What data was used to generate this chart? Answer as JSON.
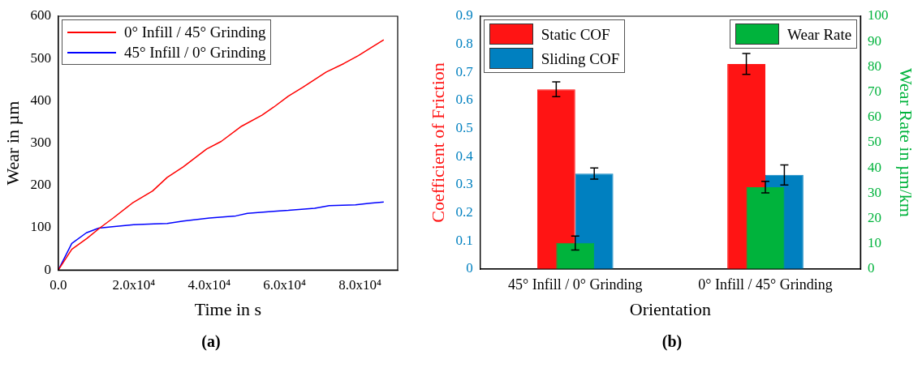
{
  "chart_data": [
    {
      "type": "line",
      "xlabel": "Time in s",
      "ylabel": "Wear in µm",
      "legend": "top left",
      "marker": "none",
      "line_style": "solid",
      "xlim": [
        0,
        90000
      ],
      "xticks": [
        {
          "value": 0,
          "label": "0.0"
        },
        {
          "value": 20000,
          "label": "2.0x10⁴"
        },
        {
          "value": 40000,
          "label": "4.0x10⁴"
        },
        {
          "value": 60000,
          "label": "6.0x10⁴"
        },
        {
          "value": 80000,
          "label": "8.0x10⁴"
        }
      ],
      "ylim": [
        0,
        600
      ],
      "yticks": [
        0,
        100,
        200,
        300,
        400,
        500,
        600
      ],
      "series": [
        {
          "name": "0° Infill / 45° Grinding",
          "color": "#ff0000",
          "x": [
            0,
            3560,
            7590,
            11070,
            14550,
            19580,
            25000,
            28870,
            33130,
            39320,
            43190,
            48600,
            54000,
            57100,
            61000,
            64860,
            71050,
            75700,
            79570,
            82660,
            86300
          ],
          "values": [
            0,
            49,
            75,
            100,
            123,
            158,
            187,
            219,
            244,
            286,
            304,
            340,
            366,
            385,
            411,
            432,
            468,
            488,
            507,
            524,
            544
          ]
        },
        {
          "name": "45° Infill / 0° Grinding",
          "color": "#0000ff",
          "x": [
            0,
            3560,
            7430,
            10680,
            13780,
            19970,
            25390,
            28870,
            33130,
            40100,
            47060,
            50160,
            57120,
            60990,
            67960,
            71830,
            78800,
            82660,
            86300
          ],
          "values": [
            0,
            63,
            88,
            99,
            102,
            107,
            109,
            110,
            116,
            123,
            128,
            134,
            139,
            141,
            146,
            152,
            154,
            158,
            161
          ]
        }
      ],
      "annotations": [
        "(a)"
      ]
    },
    {
      "type": "bar",
      "xlabel": "Orientation",
      "ylabel": "Coefficient of Friction",
      "y2label": "Wear Rate in µm/km",
      "legend": "top left",
      "categories": [
        "45° Infill / 0° Grinding",
        "0° Infill / 45° Grinding"
      ],
      "ylim": [
        0,
        0.9
      ],
      "yticks": [
        0,
        0.1,
        0.2,
        0.3,
        0.4,
        0.5,
        0.6,
        0.7,
        0.8,
        0.9
      ],
      "y2lim": [
        0,
        100
      ],
      "y2ticks": [
        0,
        10,
        20,
        30,
        40,
        50,
        60,
        70,
        80,
        90,
        100
      ],
      "series": [
        {
          "name": "Static COF",
          "color": "#ff1414",
          "values": [
            0.64,
            0.73
          ],
          "errors": [
            0.026,
            0.037
          ]
        },
        {
          "name": "Sliding COF",
          "color": "#0080c0",
          "values": [
            0.34,
            0.335
          ],
          "errors": [
            0.02,
            0.036
          ]
        },
        {
          "name": "Wear Rate",
          "color": "#00b33c",
          "axis": "y2",
          "values": [
            10.3,
            32.4
          ],
          "errors": [
            2.8,
            2.3
          ]
        }
      ],
      "annotations": [
        "(b)"
      ]
    }
  ]
}
